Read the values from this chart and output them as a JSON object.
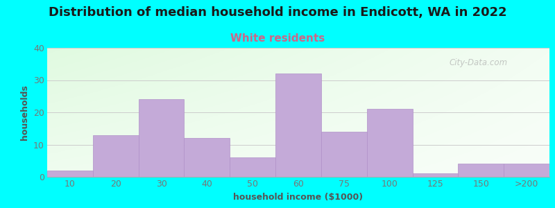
{
  "title": "Distribution of median household income in Endicott, WA in 2022",
  "subtitle": "White residents",
  "xlabel": "household income ($1000)",
  "ylabel": "households",
  "background_color": "#00FFFF",
  "bar_color": "#c4aad8",
  "bar_edge_color": "#b090c8",
  "categories": [
    "10",
    "20",
    "30",
    "40",
    "50",
    "60",
    "75",
    "100",
    "125",
    "150",
    ">200"
  ],
  "values": [
    2,
    13,
    24,
    12,
    6,
    32,
    14,
    21,
    1,
    4,
    4
  ],
  "ylim": [
    0,
    40
  ],
  "yticks": [
    0,
    10,
    20,
    30,
    40
  ],
  "title_fontsize": 13,
  "subtitle_fontsize": 11,
  "subtitle_color": "#cc6688",
  "axis_label_color": "#555555",
  "axis_label_fontsize": 9,
  "tick_fontsize": 9,
  "tick_color": "#777777",
  "watermark": "City-Data.com",
  "grid_color": "#cccccc"
}
